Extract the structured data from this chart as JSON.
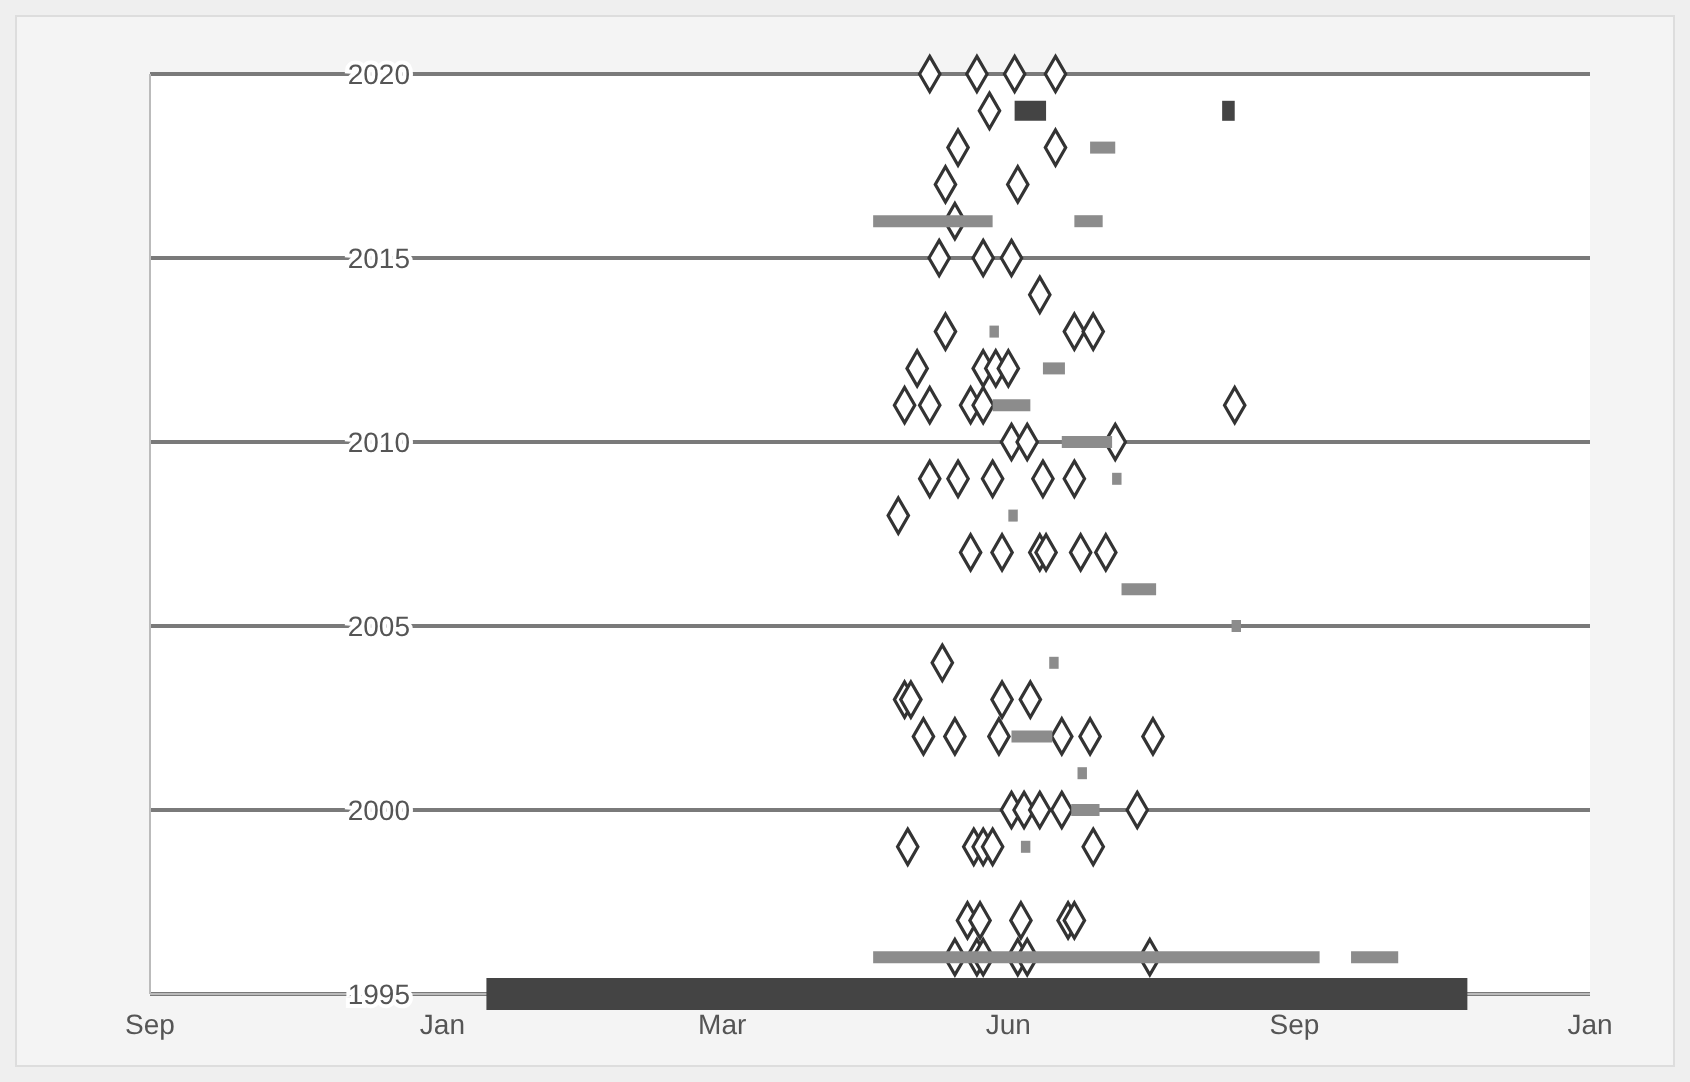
{
  "chart_data": {
    "type": "scatter",
    "xlim": [
      "2000-09-30",
      "2002-01-01"
    ],
    "ylim": [
      1995,
      2020
    ],
    "xticks": [
      {
        "value": "2000-09-30",
        "label": "Sep"
      },
      {
        "value": "2001-01-01",
        "label": "Jan"
      },
      {
        "value": "2001-03-31",
        "label": "Mar"
      },
      {
        "value": "2001-06-30",
        "label": "Jun"
      },
      {
        "value": "2001-09-29",
        "label": "Sep"
      },
      {
        "value": "2002-01-01",
        "label": "Jan"
      }
    ],
    "yticks": [
      1995,
      2000,
      2005,
      2010,
      2015,
      2020
    ],
    "grid": "y",
    "series": [
      {
        "marker": "diamond",
        "color": "#333333",
        "x": [
          "2001-06-05",
          "2001-06-20",
          "2001-07-02",
          "2001-07-15",
          "2001-06-24",
          "2001-06-14",
          "2001-07-15",
          "2001-06-10",
          "2001-07-03",
          "2001-06-13",
          "2001-06-08",
          "2001-06-22",
          "2001-07-01",
          "2001-07-10",
          "2001-06-10",
          "2001-07-21",
          "2001-07-27",
          "2001-06-01",
          "2001-06-22",
          "2001-06-26",
          "2001-06-30",
          "2001-05-28",
          "2001-06-05",
          "2001-06-18",
          "2001-06-22",
          "2001-09-10",
          "2001-07-01",
          "2001-07-06",
          "2001-08-03",
          "2001-06-05",
          "2001-06-14",
          "2001-06-25",
          "2001-07-11",
          "2001-07-21",
          "2001-05-26",
          "2001-06-18",
          "2001-06-28",
          "2001-07-10",
          "2001-07-12",
          "2001-07-23",
          "2001-07-31",
          "2001-06-09",
          "2001-05-28",
          "2001-05-30",
          "2001-06-28",
          "2001-07-07",
          "2001-06-03",
          "2001-06-13",
          "2001-06-27",
          "2001-07-17",
          "2001-07-26",
          "2001-08-15",
          "2001-07-01",
          "2001-07-05",
          "2001-07-10",
          "2001-07-17",
          "2001-08-10",
          "2001-05-29",
          "2001-06-19",
          "2001-06-22",
          "2001-06-25",
          "2001-07-27",
          "2001-06-17",
          "2001-06-21",
          "2001-07-04",
          "2001-07-19",
          "2001-07-21",
          "2001-06-13",
          "2001-06-20",
          "2001-06-22",
          "2001-07-03",
          "2001-07-06",
          "2001-08-14"
        ],
        "values": [
          2020,
          2020,
          2020,
          2020,
          2019,
          2018,
          2018,
          2017,
          2017,
          2016,
          2015,
          2015,
          2015,
          2014,
          2013,
          2013,
          2013,
          2012,
          2012,
          2012,
          2012,
          2011,
          2011,
          2011,
          2011,
          2011,
          2010,
          2010,
          2010,
          2009,
          2009,
          2009,
          2009,
          2009,
          2008,
          2007,
          2007,
          2007,
          2007,
          2007,
          2007,
          2004,
          2003,
          2003,
          2003,
          2003,
          2002,
          2002,
          2002,
          2002,
          2002,
          2002,
          2000,
          2000,
          2000,
          2000,
          2000,
          1999,
          1999,
          1999,
          1999,
          1999,
          1997,
          1997,
          1997,
          1997,
          1997,
          1996,
          1996,
          1996,
          1996,
          1996,
          1996
        ]
      },
      {
        "type": "line",
        "marker": "none",
        "color": "#8c8c8c",
        "x": [
          "2001-07-26",
          "2001-08-03"
        ],
        "values": [
          2018,
          2018
        ]
      },
      {
        "type": "line",
        "marker": "none",
        "color": "#8c8c8c",
        "x": [
          "2001-05-18",
          "2001-06-25"
        ],
        "values": [
          2016,
          2016
        ]
      },
      {
        "type": "line",
        "marker": "none",
        "color": "#8c8c8c",
        "x": [
          "2001-07-21",
          "2001-07-30"
        ],
        "values": [
          2016,
          2016
        ]
      },
      {
        "type": "line",
        "marker": "none",
        "color": "#8c8c8c",
        "x": [
          "2001-06-24",
          "2001-06-27"
        ],
        "values": [
          2013,
          2013
        ]
      },
      {
        "type": "line",
        "marker": "none",
        "color": "#8c8c8c",
        "x": [
          "2001-07-11",
          "2001-07-18"
        ],
        "values": [
          2012,
          2012
        ]
      },
      {
        "type": "line",
        "marker": "none",
        "color": "#8c8c8c",
        "x": [
          "2001-06-25",
          "2001-07-07"
        ],
        "values": [
          2011,
          2011
        ]
      },
      {
        "type": "line",
        "marker": "none",
        "color": "#8c8c8c",
        "x": [
          "2001-07-17",
          "2001-08-02"
        ],
        "values": [
          2010,
          2010
        ]
      },
      {
        "type": "line",
        "marker": "none",
        "color": "#8c8c8c",
        "x": [
          "2001-08-02",
          "2001-08-05"
        ],
        "values": [
          2009,
          2009
        ]
      },
      {
        "type": "line",
        "marker": "none",
        "color": "#8c8c8c",
        "x": [
          "2001-06-30",
          "2001-07-03"
        ],
        "values": [
          2008,
          2008
        ]
      },
      {
        "type": "line",
        "marker": "none",
        "color": "#8c8c8c",
        "x": [
          "2001-08-05",
          "2001-08-16"
        ],
        "values": [
          2006,
          2006
        ]
      },
      {
        "type": "line",
        "marker": "none",
        "color": "#8c8c8c",
        "x": [
          "2001-09-09",
          "2001-09-12"
        ],
        "values": [
          2005,
          2005
        ]
      },
      {
        "type": "line",
        "marker": "none",
        "color": "#8c8c8c",
        "x": [
          "2001-07-13",
          "2001-07-16"
        ],
        "values": [
          2004,
          2004
        ]
      },
      {
        "type": "line",
        "marker": "none",
        "color": "#8c8c8c",
        "x": [
          "2001-07-01",
          "2001-07-14"
        ],
        "values": [
          2002,
          2002
        ]
      },
      {
        "type": "line",
        "marker": "none",
        "color": "#8c8c8c",
        "x": [
          "2001-07-22",
          "2001-07-25"
        ],
        "values": [
          2001,
          2001
        ]
      },
      {
        "type": "line",
        "marker": "none",
        "color": "#8c8c8c",
        "x": [
          "2001-07-20",
          "2001-07-29"
        ],
        "values": [
          2000,
          2000
        ]
      },
      {
        "type": "line",
        "marker": "none",
        "color": "#8c8c8c",
        "x": [
          "2001-07-04",
          "2001-07-07"
        ],
        "values": [
          1999,
          1999
        ]
      },
      {
        "type": "line",
        "marker": "none",
        "color": "#8c8c8c",
        "x": [
          "2001-05-18",
          "2001-10-07"
        ],
        "values": [
          1996,
          1996
        ]
      },
      {
        "type": "line",
        "marker": "none",
        "color": "#8c8c8c",
        "x": [
          "2001-10-17",
          "2001-11-01"
        ],
        "values": [
          1996,
          1996
        ]
      },
      {
        "type": "line",
        "marker": "none",
        "color": "#444444",
        "x": [
          "2001-07-02",
          "2001-07-12"
        ],
        "values": [
          2019,
          2019
        ]
      },
      {
        "type": "line",
        "marker": "none",
        "color": "#444444",
        "x": [
          "2001-09-06",
          "2001-09-10"
        ],
        "values": [
          2019,
          2019
        ]
      },
      {
        "type": "line",
        "marker": "none",
        "color": "#444444",
        "x": [
          "2001-01-15",
          "2001-11-23"
        ],
        "values": [
          1995,
          1995
        ]
      }
    ]
  }
}
